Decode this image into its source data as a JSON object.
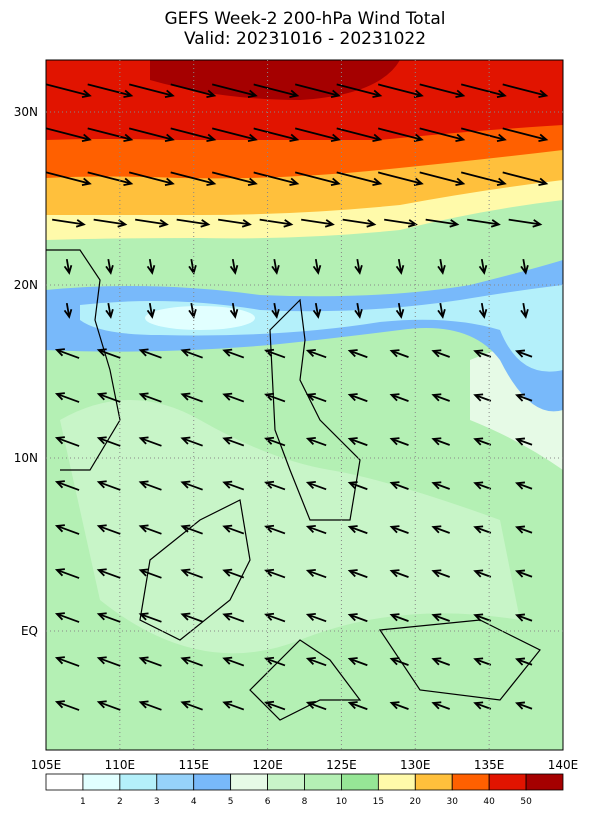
{
  "header": {
    "title": "GEFS Week-2 200-hPa Wind Total",
    "subtitle": "Valid: 20231016 - 20231022"
  },
  "map": {
    "lon_labels": [
      "105E",
      "110E",
      "115E",
      "120E",
      "125E",
      "130E",
      "135E",
      "140E"
    ],
    "lat_labels": [
      "30N",
      "20N",
      "10N",
      "EQ"
    ]
  },
  "colorbar": {
    "labels": [
      1,
      2,
      3,
      4,
      5,
      6,
      8,
      10,
      15,
      20,
      30,
      40,
      50
    ],
    "colors": [
      "#ffffff",
      "#e1ffff",
      "#b4f0fa",
      "#96d2fa",
      "#78b9fa",
      "#e6fae6",
      "#c8f5c8",
      "#b4f0b4",
      "#96e696",
      "#fffaaa",
      "#ffc03c",
      "#ff6000",
      "#e11400",
      "#a50000"
    ]
  }
}
